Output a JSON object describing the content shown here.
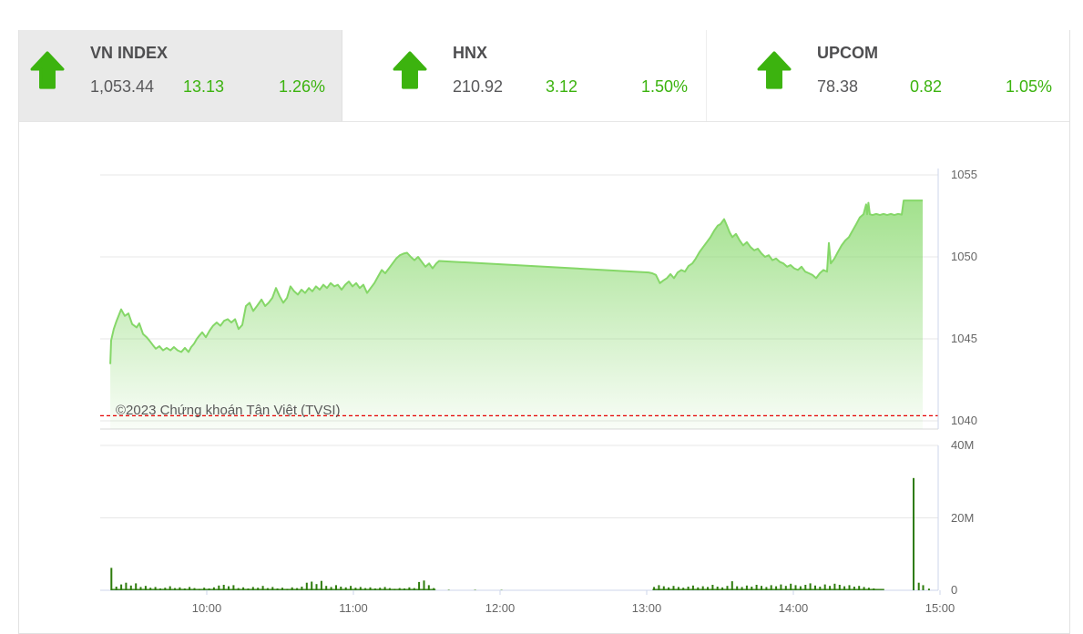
{
  "indices": [
    {
      "name": "VN INDEX",
      "value": "1,053.44",
      "change": "13.13",
      "change_pct": "1.26%",
      "direction": "up",
      "selected": true
    },
    {
      "name": "HNX",
      "value": "210.92",
      "change": "3.12",
      "change_pct": "1.50%",
      "direction": "up",
      "selected": false
    },
    {
      "name": "UPCOM",
      "value": "78.38",
      "change": "0.82",
      "change_pct": "1.05%",
      "direction": "up",
      "selected": false
    }
  ],
  "colors": {
    "up_green": "#3cb30f",
    "line_green": "#85d768",
    "fill_green": "#86d86a",
    "bar_green": "#2e7c0c",
    "ref_red": "#e40000",
    "grid": "#e7e7e7",
    "axis_light": "#ccd6eb",
    "axis_gray": "#d8d8d8",
    "label_gray": "#666666"
  },
  "chart_data": [
    {
      "type": "area",
      "title": "VN-Index intraday price",
      "annotation": "©2023 Chứng khoán Tân Việt (TVSI)",
      "x_axis": {
        "ticks": [
          {
            "hour": 10,
            "label": "10:00"
          },
          {
            "hour": 11,
            "label": "11:00"
          },
          {
            "hour": 12,
            "label": "12:00"
          },
          {
            "hour": 13,
            "label": "13:00"
          },
          {
            "hour": 14,
            "label": "14:00"
          },
          {
            "hour": 15,
            "label": "15:00"
          }
        ],
        "range_hours": [
          9.273,
          14.988
        ]
      },
      "y_axis": {
        "position": "right",
        "ticks": [
          {
            "value": 1055,
            "label": "1055"
          },
          {
            "value": 1050,
            "label": "1050"
          },
          {
            "value": 1045,
            "label": "1045"
          },
          {
            "value": 1040,
            "label": "1040"
          }
        ],
        "range": [
          1039.5,
          1055.4
        ]
      },
      "reference_line": {
        "value": 1040.31,
        "meaning": "previous close",
        "style": "dashed"
      },
      "series": [
        {
          "name": "VN-Index",
          "points": [
            [
              9.342,
              1043.46
            ],
            [
              9.348,
              1044.9
            ],
            [
              9.366,
              1045.6
            ],
            [
              9.385,
              1046.1
            ],
            [
              9.416,
              1046.8
            ],
            [
              9.441,
              1046.4
            ],
            [
              9.466,
              1046.55
            ],
            [
              9.491,
              1045.9
            ],
            [
              9.522,
              1045.7
            ],
            [
              9.54,
              1045.95
            ],
            [
              9.565,
              1045.3
            ],
            [
              9.59,
              1045.1
            ],
            [
              9.609,
              1044.9
            ],
            [
              9.634,
              1044.6
            ],
            [
              9.652,
              1044.4
            ],
            [
              9.677,
              1044.55
            ],
            [
              9.702,
              1044.3
            ],
            [
              9.727,
              1044.45
            ],
            [
              9.752,
              1044.3
            ],
            [
              9.776,
              1044.5
            ],
            [
              9.801,
              1044.3
            ],
            [
              9.826,
              1044.2
            ],
            [
              9.851,
              1044.45
            ],
            [
              9.876,
              1044.2
            ],
            [
              9.894,
              1044.5
            ],
            [
              9.913,
              1044.7
            ],
            [
              9.932,
              1045.0
            ],
            [
              9.95,
              1045.2
            ],
            [
              9.969,
              1045.4
            ],
            [
              9.994,
              1045.1
            ],
            [
              10.019,
              1045.5
            ],
            [
              10.043,
              1045.8
            ],
            [
              10.068,
              1046.0
            ],
            [
              10.093,
              1045.8
            ],
            [
              10.118,
              1046.1
            ],
            [
              10.143,
              1046.2
            ],
            [
              10.168,
              1046.0
            ],
            [
              10.193,
              1046.2
            ],
            [
              10.217,
              1045.6
            ],
            [
              10.242,
              1045.85
            ],
            [
              10.267,
              1047.0
            ],
            [
              10.292,
              1047.2
            ],
            [
              10.317,
              1046.7
            ],
            [
              10.342,
              1047.0
            ],
            [
              10.373,
              1047.4
            ],
            [
              10.398,
              1047.0
            ],
            [
              10.422,
              1047.2
            ],
            [
              10.447,
              1047.5
            ],
            [
              10.472,
              1048.1
            ],
            [
              10.497,
              1047.6
            ],
            [
              10.522,
              1047.2
            ],
            [
              10.547,
              1047.5
            ],
            [
              10.571,
              1048.2
            ],
            [
              10.596,
              1047.9
            ],
            [
              10.621,
              1047.7
            ],
            [
              10.646,
              1048.0
            ],
            [
              10.671,
              1047.8
            ],
            [
              10.696,
              1048.1
            ],
            [
              10.72,
              1047.9
            ],
            [
              10.745,
              1048.2
            ],
            [
              10.77,
              1048.0
            ],
            [
              10.795,
              1048.3
            ],
            [
              10.82,
              1048.1
            ],
            [
              10.845,
              1048.4
            ],
            [
              10.87,
              1048.2
            ],
            [
              10.894,
              1048.3
            ],
            [
              10.919,
              1048.0
            ],
            [
              10.944,
              1048.3
            ],
            [
              10.969,
              1048.5
            ],
            [
              10.994,
              1048.2
            ],
            [
              11.019,
              1048.4
            ],
            [
              11.043,
              1048.1
            ],
            [
              11.068,
              1048.3
            ],
            [
              11.093,
              1047.8
            ],
            [
              11.118,
              1048.1
            ],
            [
              11.143,
              1048.4
            ],
            [
              11.168,
              1048.8
            ],
            [
              11.193,
              1049.2
            ],
            [
              11.217,
              1049.0
            ],
            [
              11.242,
              1049.3
            ],
            [
              11.267,
              1049.6
            ],
            [
              11.292,
              1049.9
            ],
            [
              11.317,
              1050.1
            ],
            [
              11.342,
              1050.2
            ],
            [
              11.366,
              1050.25
            ],
            [
              11.391,
              1050.0
            ],
            [
              11.416,
              1049.8
            ],
            [
              11.441,
              1050.0
            ],
            [
              11.466,
              1049.7
            ],
            [
              11.491,
              1049.4
            ],
            [
              11.516,
              1049.6
            ],
            [
              11.54,
              1049.3
            ],
            [
              11.565,
              1049.6
            ],
            [
              11.584,
              1049.75
            ],
            [
              13.013,
              1049.05
            ],
            [
              13.038,
              1049.0
            ],
            [
              13.063,
              1048.9
            ],
            [
              13.09,
              1048.4
            ],
            [
              13.112,
              1048.55
            ],
            [
              13.137,
              1048.7
            ],
            [
              13.162,
              1048.95
            ],
            [
              13.186,
              1048.7
            ],
            [
              13.211,
              1049.05
            ],
            [
              13.236,
              1049.2
            ],
            [
              13.261,
              1049.1
            ],
            [
              13.286,
              1049.45
            ],
            [
              13.311,
              1049.6
            ],
            [
              13.335,
              1049.9
            ],
            [
              13.36,
              1050.3
            ],
            [
              13.385,
              1050.6
            ],
            [
              13.41,
              1050.9
            ],
            [
              13.435,
              1051.2
            ],
            [
              13.46,
              1051.6
            ],
            [
              13.484,
              1051.9
            ],
            [
              13.503,
              1052.0
            ],
            [
              13.528,
              1052.3
            ],
            [
              13.547,
              1051.9
            ],
            [
              13.565,
              1051.5
            ],
            [
              13.584,
              1051.2
            ],
            [
              13.609,
              1051.4
            ],
            [
              13.634,
              1051.0
            ],
            [
              13.658,
              1050.7
            ],
            [
              13.683,
              1050.9
            ],
            [
              13.708,
              1050.6
            ],
            [
              13.733,
              1050.4
            ],
            [
              13.758,
              1050.5
            ],
            [
              13.783,
              1050.2
            ],
            [
              13.807,
              1050.0
            ],
            [
              13.832,
              1050.1
            ],
            [
              13.857,
              1049.8
            ],
            [
              13.882,
              1049.9
            ],
            [
              13.907,
              1049.7
            ],
            [
              13.932,
              1049.6
            ],
            [
              13.957,
              1049.4
            ],
            [
              13.981,
              1049.5
            ],
            [
              14.006,
              1049.3
            ],
            [
              14.031,
              1049.2
            ],
            [
              14.056,
              1049.4
            ],
            [
              14.081,
              1049.1
            ],
            [
              14.106,
              1049.0
            ],
            [
              14.13,
              1048.9
            ],
            [
              14.155,
              1048.7
            ],
            [
              14.18,
              1049.0
            ],
            [
              14.205,
              1049.2
            ],
            [
              14.23,
              1049.1
            ],
            [
              14.242,
              1050.85
            ],
            [
              14.255,
              1049.6
            ],
            [
              14.28,
              1049.9
            ],
            [
              14.304,
              1050.3
            ],
            [
              14.329,
              1050.7
            ],
            [
              14.354,
              1051.0
            ],
            [
              14.379,
              1051.2
            ],
            [
              14.404,
              1051.6
            ],
            [
              14.429,
              1052.0
            ],
            [
              14.453,
              1052.4
            ],
            [
              14.478,
              1052.6
            ],
            [
              14.496,
              1053.2
            ],
            [
              14.503,
              1052.6
            ],
            [
              14.512,
              1053.3
            ],
            [
              14.522,
              1052.6
            ],
            [
              14.54,
              1052.55
            ],
            [
              14.565,
              1052.62
            ],
            [
              14.59,
              1052.55
            ],
            [
              14.615,
              1052.62
            ],
            [
              14.64,
              1052.55
            ],
            [
              14.665,
              1052.62
            ],
            [
              14.689,
              1052.55
            ],
            [
              14.714,
              1052.62
            ],
            [
              14.739,
              1052.58
            ],
            [
              14.752,
              1053.44
            ],
            [
              14.882,
              1053.44
            ]
          ]
        }
      ]
    },
    {
      "type": "bar",
      "title": "Trading volume",
      "y_axis": {
        "position": "right",
        "ticks": [
          {
            "value": 40,
            "label": "40M"
          },
          {
            "value": 20,
            "label": "20M"
          },
          {
            "value": 0,
            "label": "0"
          }
        ],
        "range_millions": [
          0,
          41
        ]
      },
      "sessions_hours": [
        [
          9.345,
          11.56
        ],
        [
          13.04,
          14.62
        ]
      ],
      "bar_groups": [
        {
          "start_hour": 9.35,
          "step_hour": 0.0333,
          "values_millions": [
            6.2,
            1.0,
            1.6,
            2.1,
            1.3,
            1.9,
            0.9,
            1.2,
            0.7,
            0.9,
            0.5,
            0.7,
            1.1,
            0.6,
            0.8,
            0.5,
            0.9,
            0.6,
            0.4,
            0.7,
            0.5,
            0.8,
            1.3,
            1.5,
            1.1,
            1.4,
            0.6,
            0.8,
            0.5,
            0.9,
            0.7,
            1.2,
            0.6,
            0.9,
            0.5,
            0.7,
            0.4,
            0.8,
            0.6,
            1.0,
            2.1,
            2.4,
            1.7,
            2.6,
            1.2,
            0.9,
            1.4,
            1.0,
            0.8,
            1.2,
            0.7,
            0.9,
            0.6,
            0.8,
            0.5,
            0.7,
            0.9,
            0.6,
            0.4,
            0.6,
            0.5,
            0.8,
            0.6,
            2.3,
            2.7,
            1.4,
            0.6
          ]
        },
        {
          "start_hour": 11.65,
          "step_hour": 0.18,
          "values_millions": [
            0.12,
            0.12,
            0.1
          ]
        },
        {
          "start_hour": 13.05,
          "step_hour": 0.0333,
          "values_millions": [
            0.9,
            1.4,
            1.1,
            0.8,
            1.2,
            0.9,
            0.7,
            1.0,
            1.3,
            0.8,
            1.1,
            0.9,
            1.5,
            1.0,
            0.8,
            1.2,
            2.5,
            1.1,
            0.9,
            1.3,
            1.0,
            1.5,
            1.2,
            0.9,
            1.4,
            1.1,
            1.6,
            1.2,
            1.8,
            1.4,
            1.1,
            1.5,
            1.9,
            1.3,
            1.0,
            1.6,
            1.2,
            1.8,
            1.5,
            1.1,
            1.4,
            1.0,
            1.2,
            0.9,
            0.7,
            0.5
          ]
        }
      ],
      "extra_bars": [
        [
          14.82,
          31.0
        ],
        [
          14.855,
          2.1
        ],
        [
          14.885,
          1.4
        ],
        [
          14.925,
          0.45
        ]
      ]
    }
  ]
}
